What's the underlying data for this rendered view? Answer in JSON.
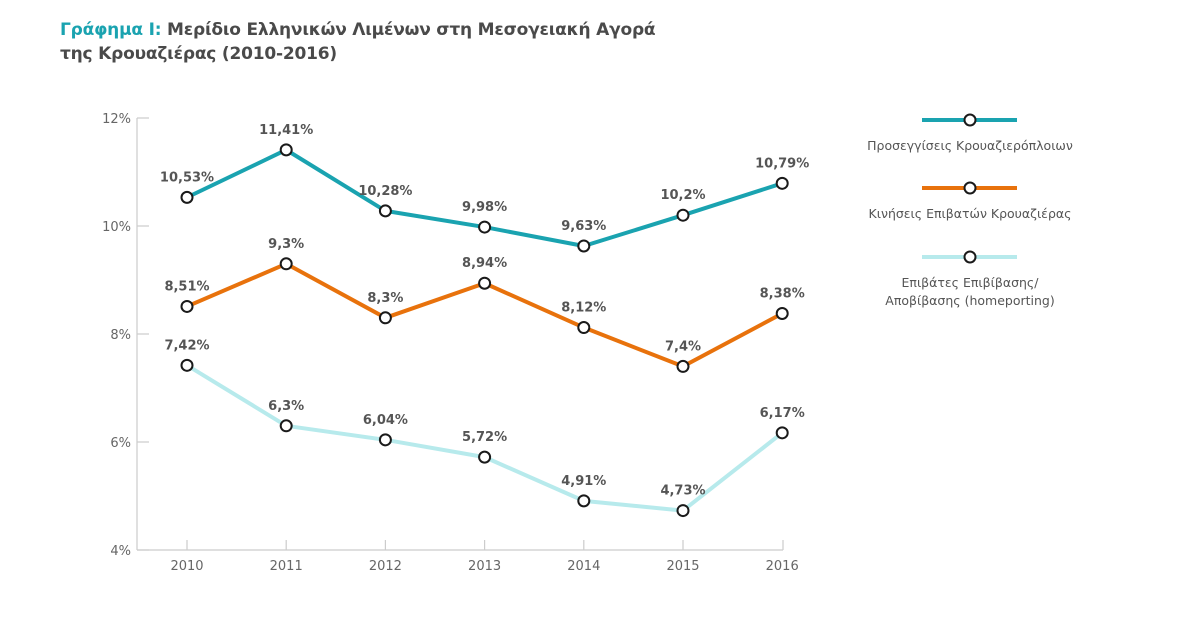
{
  "title": {
    "prefix": "Γράφημα Ι:",
    "line1": "Μερίδιο Ελληνικών Λιμένων στη Μεσογειακή Αγορά",
    "line2": "της Κρουαζιέρας (2010-2016)"
  },
  "chart_data": {
    "type": "line",
    "title": "Γράφημα Ι: Μερίδιο Ελληνικών Λιμένων στη Μεσογειακή Αγορά της Κρουαζιέρας (2010-2016)",
    "xlabel": "",
    "ylabel": "",
    "categories": [
      "2010",
      "2011",
      "2012",
      "2013",
      "2014",
      "2015",
      "2016"
    ],
    "ylim": [
      4,
      12
    ],
    "yticks": [
      4,
      6,
      8,
      10,
      12
    ],
    "ytick_labels": [
      "4%",
      "6%",
      "8%",
      "10%",
      "12%"
    ],
    "grid": false,
    "legend_position": "right",
    "series": [
      {
        "name": "Προσεγγίσεις Κρουαζιερόπλοιων",
        "color": "#1aa3b0",
        "values": [
          10.53,
          11.41,
          10.28,
          9.98,
          9.63,
          10.2,
          10.79
        ],
        "labels": [
          "10,53%",
          "11,41%",
          "10,28%",
          "9,98%",
          "9,63%",
          "10,2%",
          "10,79%"
        ]
      },
      {
        "name": "Κινήσεις Επιβατών Κρουαζιέρας",
        "color": "#e8720c",
        "values": [
          8.51,
          9.3,
          8.3,
          8.94,
          8.12,
          7.4,
          8.38
        ],
        "labels": [
          "8,51%",
          "9,3%",
          "8,3%",
          "8,94%",
          "8,12%",
          "7,4%",
          "8,38%"
        ]
      },
      {
        "name": "Επιβάτες Επιβίβασης/ Αποβίβασης (homeporting)",
        "name_lines": [
          "Επιβάτες Επιβίβασης/",
          "Αποβίβασης (homeporting)"
        ],
        "color": "#b7eaec",
        "values": [
          7.42,
          6.3,
          6.04,
          5.72,
          4.91,
          4.73,
          6.17
        ],
        "labels": [
          "7,42%",
          "6,3%",
          "6,04%",
          "5,72%",
          "4,91%",
          "4,73%",
          "6,17%"
        ]
      }
    ]
  }
}
